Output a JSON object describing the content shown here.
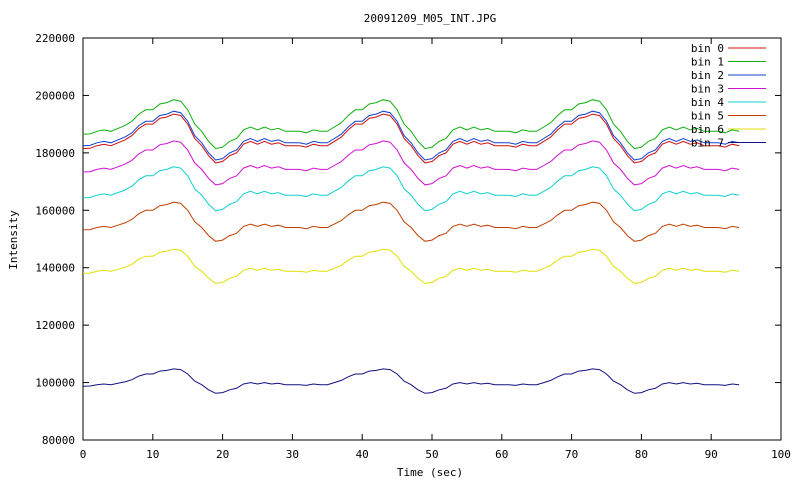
{
  "chart_data": {
    "type": "line",
    "title": "20091209_M05_INT.JPG",
    "xlabel": "Time (sec)",
    "ylabel": "Intensity",
    "xlim": [
      0,
      100
    ],
    "ylim": [
      80000,
      220000
    ],
    "xticks": [
      0,
      10,
      20,
      30,
      40,
      50,
      60,
      70,
      80,
      90,
      100
    ],
    "yticks": [
      80000,
      100000,
      120000,
      140000,
      160000,
      180000,
      200000,
      220000
    ],
    "ytick_labels": [
      "80000",
      "100000",
      "120000",
      "140000",
      "160000",
      "180000",
      "200000",
      "220000"
    ],
    "xtick_labels": [
      "0",
      "10",
      "20",
      "30",
      "40",
      "50",
      "60",
      "70",
      "80",
      "90",
      "100"
    ],
    "legend_position": "top-right",
    "grid": false,
    "x": [
      0,
      1,
      2,
      3,
      4,
      5,
      6,
      7,
      8,
      9,
      10,
      11,
      12,
      13,
      14,
      15,
      16,
      17,
      18,
      19,
      20,
      21,
      22,
      23,
      24,
      25,
      26,
      27,
      28,
      29,
      30,
      31,
      32,
      33,
      34,
      35,
      36,
      37,
      38,
      39,
      40,
      41,
      42,
      43,
      44,
      45,
      46,
      47,
      48,
      49,
      50,
      51,
      52,
      53,
      54,
      55,
      56,
      57,
      58,
      59,
      60,
      61,
      62,
      63,
      64,
      65,
      66,
      67,
      68,
      69,
      70,
      71,
      72,
      73,
      74,
      75,
      76,
      77,
      78,
      79,
      80,
      81,
      82,
      83,
      84,
      85,
      86,
      87,
      88,
      89,
      90,
      91,
      92,
      93,
      94
    ],
    "base_curve": [
      1.5,
      1.6,
      2.5,
      3.0,
      2.5,
      3.5,
      4.5,
      6.0,
      8.5,
      10.0,
      10.0,
      12.0,
      12.5,
      13.5,
      13.0,
      10.0,
      5.0,
      2.5,
      -1.0,
      -3.5,
      -3.0,
      -1.0,
      0.0,
      3.0,
      4.0,
      3.0,
      4.0,
      3.0,
      3.5,
      2.5,
      2.5,
      2.5,
      2.0,
      3.0,
      2.5,
      2.5,
      4.0,
      5.5,
      8.0,
      10.0,
      10.0,
      12.0,
      12.5,
      13.5,
      13.0,
      10.0,
      5.0,
      2.5,
      -1.0,
      -3.5,
      -3.0,
      -1.0,
      0.0,
      3.0,
      4.0,
      3.0,
      4.0,
      3.0,
      3.5,
      2.5,
      2.5,
      2.5,
      2.0,
      3.0,
      2.5,
      2.5,
      4.0,
      5.5,
      8.0,
      10.0,
      10.0,
      12.0,
      12.5,
      13.5,
      13.0,
      10.0,
      5.0,
      2.5,
      -1.0,
      -3.5,
      -3.0,
      -1.0,
      0.0,
      3.0,
      4.0,
      3.0,
      4.0,
      3.0,
      3.5,
      2.5,
      2.5,
      2.5,
      2.0,
      3.0,
      2.5
    ],
    "series": [
      {
        "name": "bin 0",
        "color": "#d01010",
        "offset": 180000,
        "amplitude": 1000
      },
      {
        "name": "bin 1",
        "color": "#10b010",
        "offset": 185000,
        "amplitude": 1000
      },
      {
        "name": "bin 2",
        "color": "#1040d0",
        "offset": 181000,
        "amplitude": 1000
      },
      {
        "name": "bin 3",
        "color": "#d010d0",
        "offset": 172000,
        "amplitude": 900
      },
      {
        "name": "bin 4",
        "color": "#10d0d0",
        "offset": 163000,
        "amplitude": 900
      },
      {
        "name": "bin 5",
        "color": "#c04000",
        "offset": 152000,
        "amplitude": 800
      },
      {
        "name": "bin 6",
        "color": "#e0e000",
        "offset": 137000,
        "amplitude": 700
      },
      {
        "name": "bin 7",
        "color": "#101080",
        "offset": 98000,
        "amplitude": 500
      }
    ]
  }
}
